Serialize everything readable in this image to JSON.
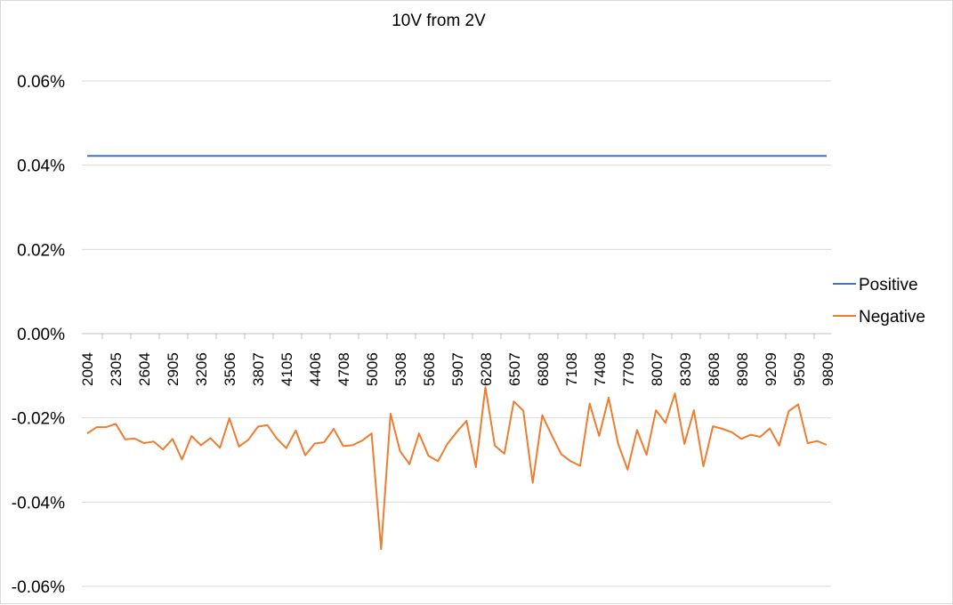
{
  "chart_data": {
    "type": "line",
    "title": "10V from 2V",
    "xlabel": "",
    "ylabel": "",
    "ylim": [
      -0.06,
      0.06
    ],
    "y_ticks": [
      {
        "value": 0.06,
        "label": "0.06%"
      },
      {
        "value": 0.04,
        "label": "0.04%"
      },
      {
        "value": 0.02,
        "label": "0.02%"
      },
      {
        "value": 0.0,
        "label": "0.00%"
      },
      {
        "value": -0.02,
        "label": "-0.02%"
      },
      {
        "value": -0.04,
        "label": "-0.04%"
      },
      {
        "value": -0.06,
        "label": "-0.06%"
      }
    ],
    "x_tick_labels": [
      "2004",
      "2305",
      "2604",
      "2905",
      "3206",
      "3506",
      "3807",
      "4105",
      "4406",
      "4708",
      "5006",
      "5308",
      "5608",
      "5907",
      "6208",
      "6507",
      "6808",
      "7108",
      "7408",
      "7709",
      "8007",
      "8309",
      "8608",
      "8908",
      "9209",
      "9509",
      "9809"
    ],
    "grid": true,
    "legend_position": "right",
    "series": [
      {
        "name": "Positive",
        "color": "#4472c4",
        "values": [
          0.0422,
          0.0422,
          0.0422,
          0.0422,
          0.0422,
          0.0422,
          0.0422,
          0.0422,
          0.0422,
          0.0422,
          0.0422,
          0.0422,
          0.0422,
          0.0422,
          0.0422,
          0.0422,
          0.0422,
          0.0422,
          0.0422,
          0.0422,
          0.0422,
          0.0422,
          0.0422,
          0.0422,
          0.0422,
          0.0422,
          0.0422,
          0.0422,
          0.0422,
          0.0422,
          0.0422,
          0.0422,
          0.0422,
          0.0422,
          0.0422,
          0.0422,
          0.0422,
          0.0422,
          0.0422,
          0.0422,
          0.0422,
          0.0422,
          0.0422,
          0.0422,
          0.0422,
          0.0422,
          0.0422,
          0.0422,
          0.0422,
          0.0422,
          0.0422,
          0.0422,
          0.0422,
          0.0422,
          0.0422,
          0.0422,
          0.0422,
          0.0422,
          0.0422,
          0.0422,
          0.0422,
          0.0422,
          0.0422,
          0.0422,
          0.0422,
          0.0422,
          0.0422,
          0.0422,
          0.0422,
          0.0422,
          0.0422,
          0.0422,
          0.0422,
          0.0422,
          0.0422,
          0.0422,
          0.0422,
          0.0422,
          0.0422
        ]
      },
      {
        "name": "Negative",
        "color": "#ed7d31",
        "values": [
          -0.0237,
          -0.0222,
          -0.0222,
          -0.0214,
          -0.0251,
          -0.0249,
          -0.026,
          -0.0256,
          -0.0275,
          -0.025,
          -0.0299,
          -0.0243,
          -0.0265,
          -0.0248,
          -0.0271,
          -0.0201,
          -0.0268,
          -0.0252,
          -0.0221,
          -0.0217,
          -0.0249,
          -0.0272,
          -0.023,
          -0.0289,
          -0.0261,
          -0.0258,
          -0.0226,
          -0.0267,
          -0.0265,
          -0.0254,
          -0.0237,
          -0.0512,
          -0.019,
          -0.0279,
          -0.031,
          -0.0237,
          -0.029,
          -0.0303,
          -0.0262,
          -0.0233,
          -0.0207,
          -0.0317,
          -0.0127,
          -0.0266,
          -0.0285,
          -0.0161,
          -0.0183,
          -0.0354,
          -0.0194,
          -0.0241,
          -0.0286,
          -0.0303,
          -0.0314,
          -0.0166,
          -0.0243,
          -0.0152,
          -0.0261,
          -0.0323,
          -0.0229,
          -0.0288,
          -0.0182,
          -0.0212,
          -0.0142,
          -0.0262,
          -0.0182,
          -0.0315,
          -0.022,
          -0.0226,
          -0.0234,
          -0.025,
          -0.024,
          -0.0245,
          -0.0225,
          -0.0266,
          -0.0184,
          -0.0168,
          -0.026,
          -0.0255,
          -0.0264
        ]
      }
    ]
  }
}
